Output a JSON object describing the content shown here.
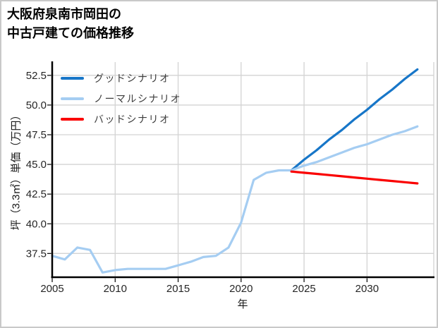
{
  "header": {
    "title_line1": "大阪府泉南市岡田の",
    "title_line2": "中古戸建ての価格推移"
  },
  "legend": {
    "items": [
      {
        "label": "グッドシナリオ",
        "color": "#1776c8"
      },
      {
        "label": "ノーマルシナリオ",
        "color": "#a5cdf2"
      },
      {
        "label": "バッドシナリオ",
        "color": "#fa0000"
      }
    ]
  },
  "chart_data": {
    "type": "line",
    "title": "大阪府泉南市岡田の中古戸建ての価格推移",
    "xlabel": "年",
    "ylabel": "坪（3.3㎡）単価（万円）",
    "xlim": [
      2005,
      2035.3
    ],
    "ylim": [
      35.5,
      53.5
    ],
    "xticks": [
      2005,
      2010,
      2015,
      2020,
      2025,
      2030
    ],
    "yticks": [
      37.5,
      40.0,
      42.5,
      45.0,
      47.5,
      50.0,
      52.5
    ],
    "grid": true,
    "legend_position": "upper-left",
    "series": [
      {
        "name": "ノーマルシナリオ",
        "role": "history",
        "color": "#a5cdf2",
        "x": [
          2005,
          2006,
          2007,
          2008,
          2009,
          2010,
          2011,
          2012,
          2013,
          2014,
          2015,
          2016,
          2017,
          2018,
          2019,
          2020,
          2021,
          2022,
          2023,
          2024
        ],
        "values": [
          37.3,
          37.0,
          38.0,
          37.8,
          35.9,
          36.1,
          36.2,
          36.2,
          36.2,
          36.2,
          36.5,
          36.8,
          37.2,
          37.3,
          38.0,
          40.1,
          43.7,
          44.3,
          44.5,
          44.5
        ]
      },
      {
        "name": "グッドシナリオ",
        "role": "forecast",
        "color": "#1776c8",
        "x": [
          2024,
          2025,
          2026,
          2027,
          2028,
          2029,
          2030,
          2031,
          2032,
          2033,
          2034
        ],
        "values": [
          44.5,
          45.4,
          46.2,
          47.1,
          47.9,
          48.8,
          49.6,
          50.5,
          51.3,
          52.2,
          53.0
        ]
      },
      {
        "name": "ノーマルシナリオ",
        "role": "forecast",
        "color": "#a5cdf2",
        "x": [
          2024,
          2025,
          2026,
          2027,
          2028,
          2029,
          2030,
          2031,
          2032,
          2033,
          2034
        ],
        "values": [
          44.5,
          44.9,
          45.2,
          45.6,
          46.0,
          46.4,
          46.7,
          47.1,
          47.5,
          47.8,
          48.2
        ]
      },
      {
        "name": "バッドシナリオ",
        "role": "forecast",
        "color": "#fa0000",
        "x": [
          2024,
          2025,
          2026,
          2027,
          2028,
          2029,
          2030,
          2031,
          2032,
          2033,
          2034
        ],
        "values": [
          44.4,
          44.3,
          44.2,
          44.1,
          44.0,
          43.9,
          43.8,
          43.7,
          43.6,
          43.5,
          43.4
        ]
      }
    ],
    "colors": {
      "grid": "#d3d3d3",
      "spine": "#000000",
      "right_spine": "#d3d3d3",
      "tick_label": "#262626",
      "legend_text": "#3d3d3d",
      "frame_border": "#c9c9c9",
      "background": "#ffffff"
    }
  }
}
